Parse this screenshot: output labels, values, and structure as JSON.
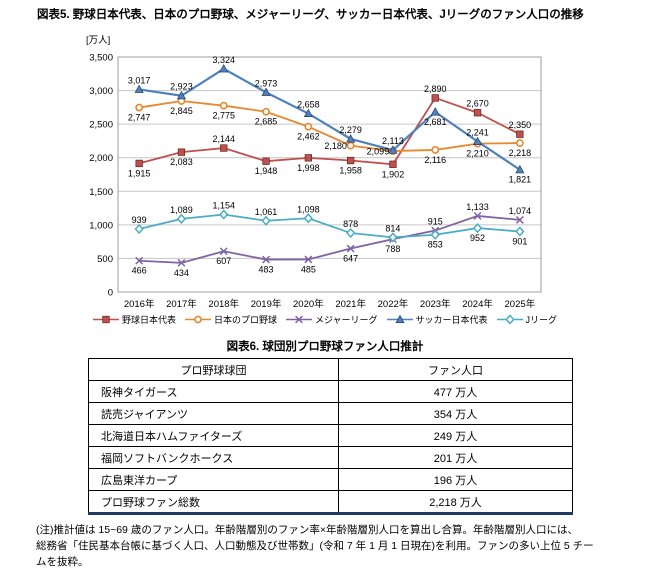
{
  "figure6": {
    "title": "図表6. 球団別プロ野球ファン人口推計",
    "table": {
      "headers": [
        "プロ野球球団",
        "ファン人口"
      ],
      "rows": [
        [
          "阪神タイガース",
          "477 万人"
        ],
        [
          "読売ジャイアンツ",
          "354 万人"
        ],
        [
          "北海道日本ハムファイターズ",
          "249 万人"
        ],
        [
          "福岡ソフトバンクホークス",
          "201 万人"
        ],
        [
          "広島東洋カープ",
          "196 万人"
        ],
        [
          "プロ野球ファン総数",
          "2,218 万人"
        ]
      ]
    }
  },
  "note_lines": [
    "(注)推計値は 15~69 歳のファン人口。年齢階層別のファン率×年齢階層別人口を算出し合算。年齢階層別人口には、",
    "総務省「住民基本台帳に基づく人口、人口動態及び世帯数」(令和 7 年 1 月 1 日現在)を利用。ファンの多い上位 5 チー",
    "ムを抜粋。"
  ],
  "chart_data": {
    "type": "line",
    "title": "図表5. 野球日本代表、日本のプロ野球、メジャーリーグ、サッカー日本代表、Jリーグのファン人口の推移",
    "unit_label": "[万人]",
    "categories": [
      "2016年",
      "2017年",
      "2018年",
      "2019年",
      "2020年",
      "2021年",
      "2022年",
      "2023年",
      "2024年",
      "2025年"
    ],
    "ylim": [
      0,
      3500
    ],
    "ytick_step": 500,
    "grid": true,
    "legend_position": "bottom",
    "series": [
      {
        "name": "野球日本代表",
        "color": "#C0504D",
        "marker": "square",
        "values": [
          1915,
          2083,
          2144,
          1948,
          1998,
          1958,
          1902,
          2890,
          2670,
          2350
        ],
        "label_pos": [
          "b",
          "b",
          "a",
          "b",
          "b",
          "b",
          "b",
          "a",
          "a",
          "a"
        ]
      },
      {
        "name": "日本のプロ野球",
        "color": "#E8872B",
        "marker": "circle",
        "values": [
          2747,
          2845,
          2775,
          2685,
          2462,
          2180,
          2099,
          2116,
          2210,
          2218
        ],
        "label_pos": [
          "b",
          "b",
          "b",
          "b",
          "b",
          "l",
          "l",
          "b",
          "b",
          "b"
        ]
      },
      {
        "name": "メジャーリーグ",
        "color": "#8064A2",
        "marker": "x",
        "values": [
          466,
          434,
          607,
          483,
          485,
          647,
          788,
          915,
          1133,
          1074
        ],
        "label_pos": [
          "b",
          "b",
          "b",
          "b",
          "b",
          "b",
          "b",
          "a",
          "a",
          "a"
        ]
      },
      {
        "name": "サッカー日本代表",
        "color": "#4F81BD",
        "marker": "triangle",
        "values": [
          3017,
          2923,
          3324,
          2973,
          2658,
          2279,
          2113,
          2681,
          2241,
          1821
        ],
        "label_pos": [
          "a",
          "a",
          "a",
          "a",
          "a",
          "a",
          "a",
          "b",
          "a",
          "b"
        ]
      },
      {
        "name": "Jリーグ",
        "color": "#4BACC6",
        "marker": "diamond",
        "values": [
          939,
          1089,
          1154,
          1061,
          1098,
          878,
          814,
          853,
          952,
          901
        ],
        "label_pos": [
          "a",
          "a",
          "a",
          "a",
          "a",
          "a",
          "a",
          "b",
          "b",
          "b"
        ]
      }
    ]
  }
}
